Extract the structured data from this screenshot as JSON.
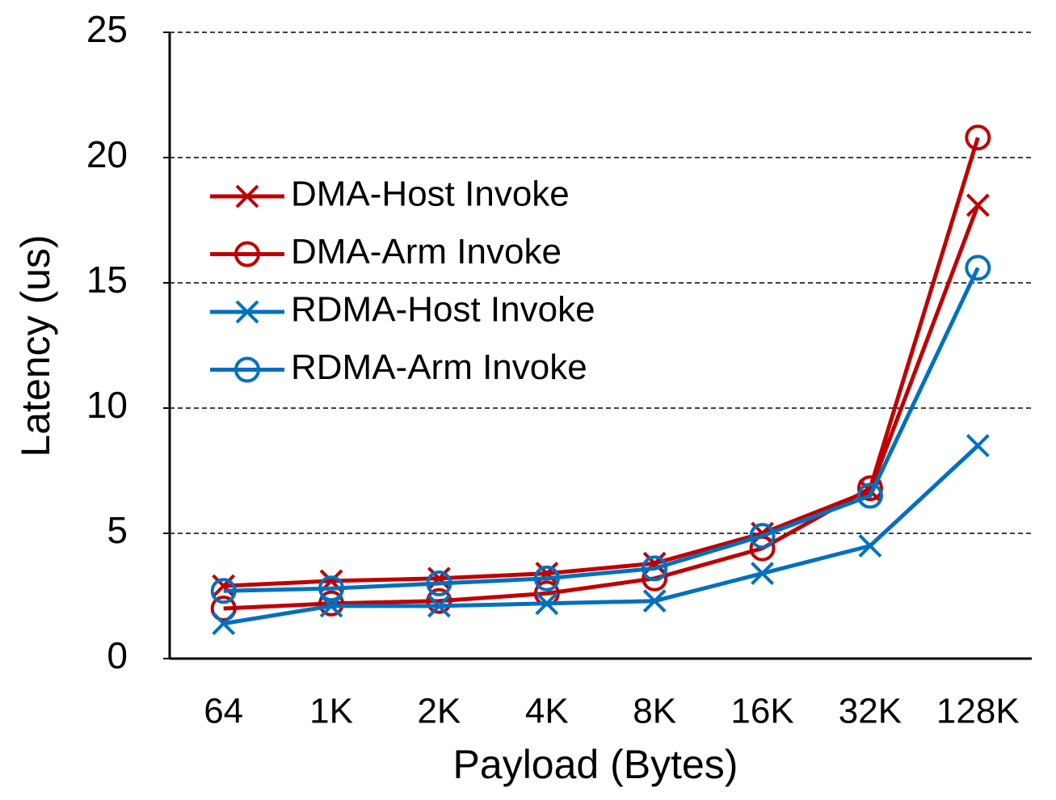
{
  "chart_data": {
    "type": "line",
    "x_label": "Payload (Bytes)",
    "y_label": "Latency (us)",
    "categories": [
      "64",
      "1K",
      "2K",
      "4K",
      "8K",
      "16K",
      "32K",
      "128K"
    ],
    "series": [
      {
        "name": "DMA-Host Invoke",
        "color": "#c00000",
        "marker": "x",
        "values": [
          2.9,
          3.1,
          3.2,
          3.4,
          3.8,
          5.0,
          6.7,
          18.1
        ]
      },
      {
        "name": "DMA-Arm Invoke",
        "color": "#c00000",
        "marker": "o",
        "values": [
          2.0,
          2.2,
          2.3,
          2.6,
          3.2,
          4.4,
          6.8,
          20.8
        ]
      },
      {
        "name": "RDMA-Host Invoke",
        "color": "#0070c0",
        "marker": "x",
        "values": [
          1.4,
          2.1,
          2.1,
          2.2,
          2.3,
          3.4,
          4.5,
          8.5
        ]
      },
      {
        "name": "RDMA-Arm Invoke",
        "color": "#0070c0",
        "marker": "o",
        "values": [
          2.7,
          2.8,
          3.0,
          3.2,
          3.6,
          4.9,
          6.5,
          15.6
        ]
      }
    ],
    "ylim": [
      0,
      25
    ],
    "yticks": [
      0,
      5,
      10,
      15,
      20,
      25
    ],
    "grid": true,
    "legend": "upper-left"
  }
}
